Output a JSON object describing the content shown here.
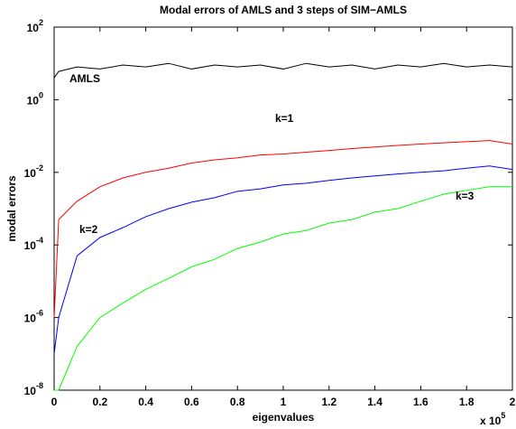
{
  "chart_data": {
    "type": "line",
    "title": "Modal errors of AMLS and 3 steps of SIM−AMLS",
    "xlabel": "eigenvalues",
    "ylabel": "modal errors",
    "x_multiplier": {
      "base": "x 10",
      "exponent": "5"
    },
    "log_y": true,
    "x": [
      0,
      2000,
      10000,
      20000,
      30000,
      40000,
      50000,
      60000,
      70000,
      80000,
      90000,
      100000,
      110000,
      120000,
      130000,
      140000,
      150000,
      160000,
      170000,
      180000,
      190000,
      200000
    ],
    "series": [
      {
        "name": "AMLS",
        "color": "#000000",
        "values": [
          4,
          6,
          8,
          7,
          9,
          8,
          10,
          7,
          9,
          8,
          9,
          7,
          10,
          8,
          9,
          7,
          9,
          8,
          10,
          8,
          9,
          8
        ]
      },
      {
        "name": "k=1",
        "color": "#ff0000",
        "values": [
          1e-06,
          0.0005,
          0.0016,
          0.004,
          0.007,
          0.01,
          0.013,
          0.018,
          0.022,
          0.025,
          0.03,
          0.032,
          0.036,
          0.04,
          0.045,
          0.05,
          0.055,
          0.06,
          0.065,
          0.07,
          0.075,
          0.06
        ]
      },
      {
        "name": "k=2",
        "color": "#0000ff",
        "values": [
          1e-07,
          1e-06,
          5e-05,
          0.00016,
          0.0003,
          0.0006,
          0.001,
          0.0015,
          0.002,
          0.003,
          0.0035,
          0.0045,
          0.005,
          0.006,
          0.007,
          0.008,
          0.009,
          0.01,
          0.011,
          0.013,
          0.015,
          0.012
        ]
      },
      {
        "name": "k=3",
        "color": "#00ff00",
        "values": [
          1e-08,
          1e-08,
          1.6e-07,
          1e-06,
          2.5e-06,
          6e-06,
          1.2e-05,
          2.5e-05,
          4e-05,
          8e-05,
          0.00012,
          0.0002,
          0.00025,
          0.0004,
          0.0005,
          0.0008,
          0.001,
          0.0016,
          0.0025,
          0.0032,
          0.004,
          0.004
        ]
      }
    ],
    "xlim": [
      0,
      200000
    ],
    "xticks": [
      0,
      {
        "value": 20000,
        "label": "0.2"
      },
      {
        "value": 40000,
        "label": "0.4"
      },
      {
        "value": 60000,
        "label": "0.6"
      },
      {
        "value": 80000,
        "label": "0.8"
      },
      {
        "value": 100000,
        "label": "1"
      },
      {
        "value": 120000,
        "label": "1.2"
      },
      {
        "value": 140000,
        "label": "1.4"
      },
      {
        "value": 160000,
        "label": "1.6"
      },
      {
        "value": 180000,
        "label": "1.8"
      },
      {
        "value": 200000,
        "label": "2"
      }
    ],
    "ylim": [
      1e-08,
      100
    ],
    "yticks": [
      {
        "value": 1e-08,
        "label": "10",
        "exponent": "-8"
      },
      {
        "value": 1e-06,
        "label": "10",
        "exponent": "-6"
      },
      {
        "value": 0.0001,
        "label": "10",
        "exponent": "-4"
      },
      {
        "value": 0.01,
        "label": "10",
        "exponent": "-2"
      },
      {
        "value": 1,
        "label": "10",
        "exponent": "0"
      },
      {
        "value": 100,
        "label": "10",
        "exponent": "2"
      }
    ]
  }
}
